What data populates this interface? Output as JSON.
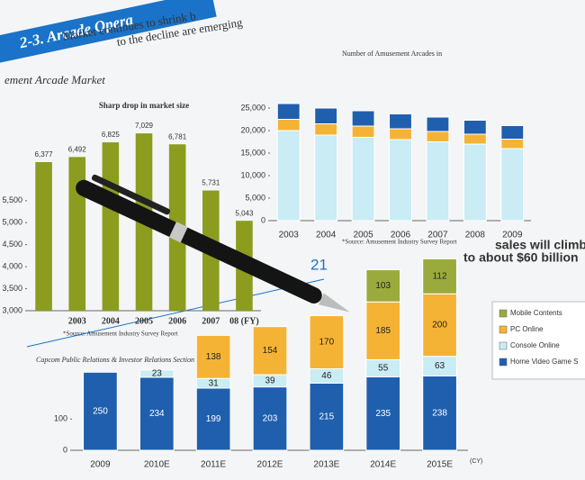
{
  "page": {
    "banner": "2-3. Arcade Opera",
    "line1": "Market continues to shrink b",
    "line2": "to the decline are emerging",
    "page_number": "21",
    "footer": "Capcom Public Relations & Investor Relations Section"
  },
  "chart_data": [
    {
      "type": "bar",
      "heading": "ement Arcade Market",
      "title": "Sharp drop in market size",
      "categories": [
        null,
        "2003",
        "2004",
        "2005",
        "2006",
        "2007",
        "08 (FY)"
      ],
      "values": [
        6377,
        6492,
        6825,
        7029,
        6781,
        5731,
        5043
      ],
      "value_labels": [
        "6,377",
        "6,492",
        "6,825",
        "7,029",
        "6,781",
        "5,731",
        "5,043"
      ],
      "color": "#8c9c1e",
      "ylim": [
        3000,
        7400
      ],
      "yticks": [
        {
          "value": 3000,
          "label": "3,000"
        },
        {
          "value": 3500,
          "label": "3,500"
        },
        {
          "value": 4000,
          "label": "4,000"
        },
        {
          "value": 4500,
          "label": "4,500"
        },
        {
          "value": 5000,
          "label": "5,000"
        },
        {
          "value": 5500,
          "label": "5,500"
        }
      ],
      "source": "*Source: Amusement Industry Survey Report"
    },
    {
      "type": "stacked_bar",
      "title": "Number of Amusement Arcades in",
      "categories": [
        "2003",
        "2004",
        "2005",
        "2006",
        "2007",
        "2008",
        "2009"
      ],
      "series": [
        {
          "color": "#c9ecf5",
          "values": [
            20000,
            19000,
            18500,
            18000,
            17500,
            17000,
            16000
          ]
        },
        {
          "color": "#f5b335",
          "values": [
            2500,
            2500,
            2500,
            2400,
            2300,
            2200,
            2100
          ]
        },
        {
          "color": "#1f5fae",
          "values": [
            3500,
            3500,
            3400,
            3300,
            3200,
            3100,
            3000
          ]
        }
      ],
      "ylim": [
        0,
        30000
      ],
      "yticks": [
        0,
        {
          "value": 5000,
          "label": "5,000"
        },
        {
          "value": 10000,
          "label": "10,000"
        },
        {
          "value": 15000,
          "label": "15,000"
        },
        {
          "value": 20000,
          "label": "20,000"
        },
        {
          "value": 25000,
          "label": "25,000"
        }
      ],
      "source": "*Source: Amusement Industry Survey Report"
    },
    {
      "type": "stacked_bar",
      "title": "sales will climb",
      "subtitle": "to about $60 billion",
      "x_unit": "(CY)",
      "categories": [
        "2009",
        "2010E",
        "2011E",
        "2012E",
        "2013E",
        "2014E",
        "2015E"
      ],
      "series": [
        {
          "name": "Home Video Game S",
          "color": "#1f5fae",
          "values": [
            250,
            234,
            199,
            203,
            215,
            235,
            238
          ]
        },
        {
          "name": "Console Online",
          "color": "#c9ecf5",
          "values": [
            null,
            23,
            31,
            39,
            46,
            55,
            63
          ]
        },
        {
          "name": "PC Online",
          "color": "#f5b335",
          "values": [
            null,
            null,
            138,
            154,
            170,
            185,
            200
          ]
        },
        {
          "name": "Mobile Contents",
          "color": "#9aaa3c",
          "values": [
            null,
            null,
            null,
            null,
            null,
            103,
            112
          ]
        }
      ],
      "ylim": [
        0,
        620
      ],
      "yticks": [
        0,
        100
      ],
      "data_labels": true,
      "legend": "right"
    }
  ]
}
